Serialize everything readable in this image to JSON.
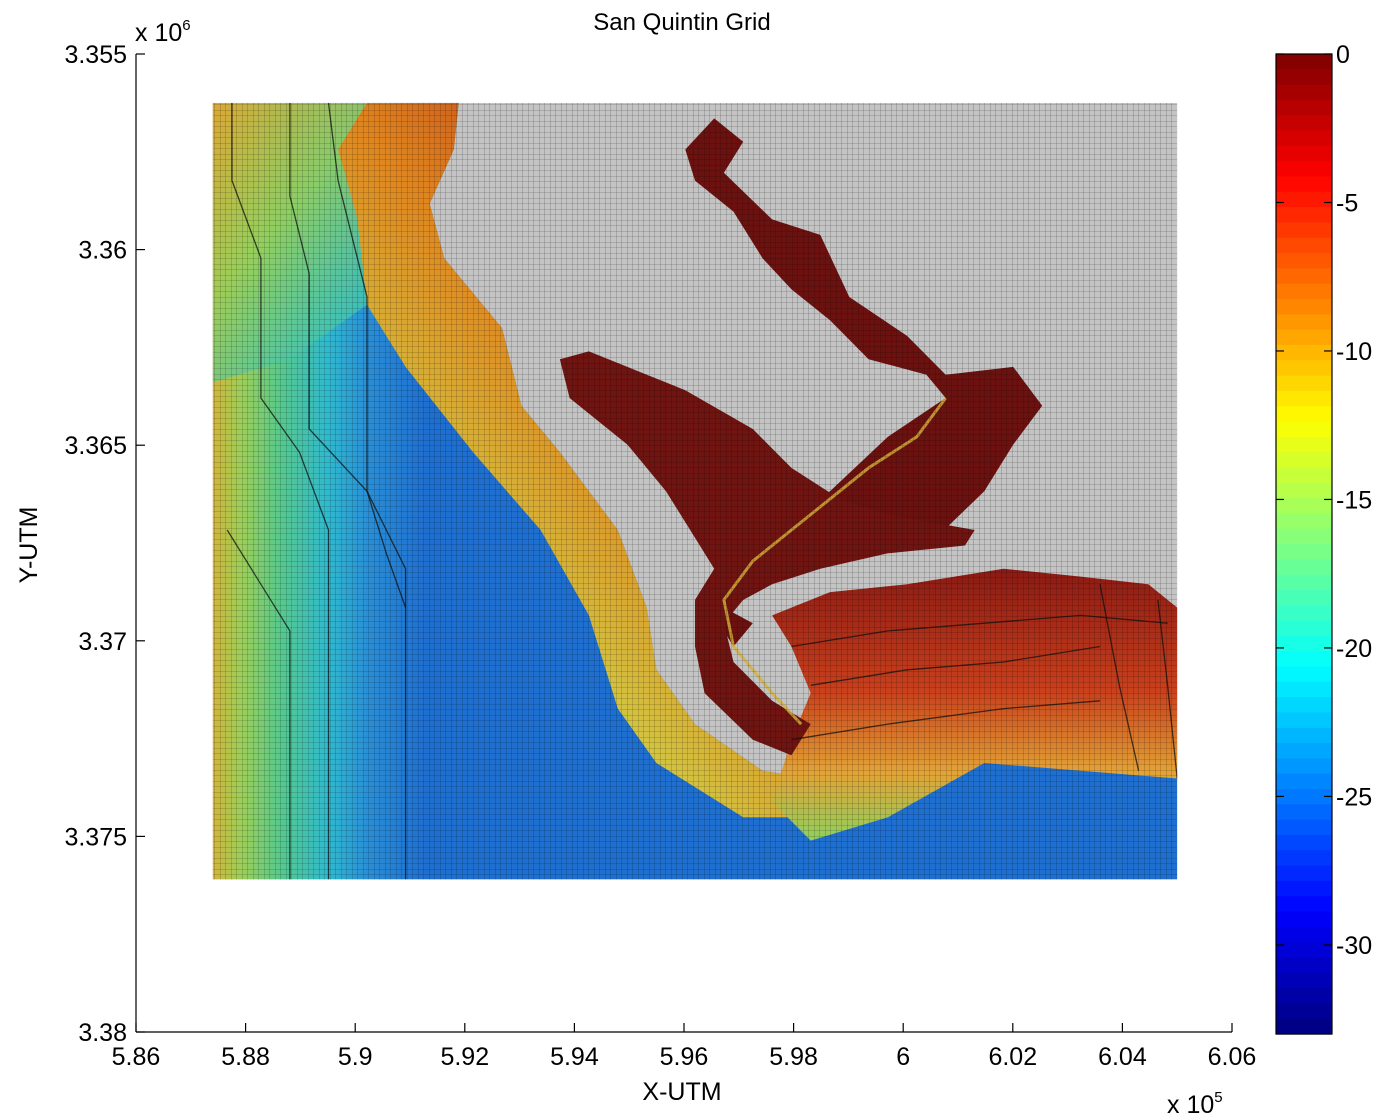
{
  "chart_data": {
    "type": "heatmap",
    "title": "San Quintin Grid",
    "xlabel": "X-UTM",
    "ylabel": "Y-UTM",
    "x_exponent_label": "x 10",
    "x_exponent": "5",
    "y_exponent_label": "x 10",
    "y_exponent": "6",
    "xlim": [
      586000,
      606000
    ],
    "ylim": [
      3355000,
      3380000
    ],
    "y_axis_reversed": true,
    "x_ticks": [
      5.86,
      5.88,
      5.9,
      5.92,
      5.94,
      5.96,
      5.98,
      6,
      6.02,
      6.04,
      6.06
    ],
    "x_tick_labels": [
      "5.86",
      "5.88",
      "5.9",
      "5.92",
      "5.94",
      "5.96",
      "5.98",
      "6",
      "6.02",
      "6.04",
      "6.06"
    ],
    "y_ticks": [
      3.355,
      3.36,
      3.365,
      3.37,
      3.375,
      3.38
    ],
    "y_tick_labels": [
      "3.355",
      "3.36",
      "3.365",
      "3.37",
      "3.375",
      "3.38"
    ],
    "grid_extent": {
      "x": [
        587400,
        605000
      ],
      "y": [
        3356250,
        3376100
      ]
    },
    "colormap": "jet",
    "colorbar": {
      "clim": [
        -33,
        0
      ],
      "ticks": [
        0,
        -5,
        -10,
        -15,
        -20,
        -25,
        -30
      ],
      "tick_labels": [
        "0",
        "-5",
        "-10",
        "-15",
        "-20",
        "-25",
        "-30"
      ]
    },
    "depth_zones": [
      {
        "zone": "open-ocean-deep",
        "approx_depth": -25
      },
      {
        "zone": "western-edge",
        "approx_depth": -13
      },
      {
        "zone": "nearshore-shelf",
        "approx_depth": -5
      },
      {
        "zone": "bay-lagoon",
        "approx_depth": -1
      },
      {
        "zone": "land-dry",
        "approx_depth": null
      }
    ],
    "colors": {
      "land_grid": "#bdbdbd",
      "deep_blue": "#1f6fd0",
      "cyan": "#2fc8d8",
      "green": "#7dcf5a",
      "yellow": "#e2d63c",
      "orange": "#e07a1e",
      "shallow_red": "#a3201a",
      "bay_dark_red": "#6b1210"
    }
  }
}
